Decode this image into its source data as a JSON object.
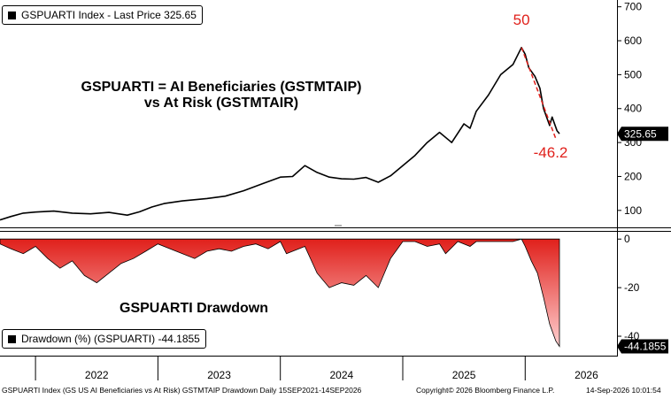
{
  "top_legend": "GSPUARTI Index - Last Price 325.65",
  "bottom_legend": "Drawdown (%) (GSPUARTI) -44.1855",
  "annotation_title_line1": "GSPUARTI = AI Beneficiaries (GSTMTAIP)",
  "annotation_title_line2": "vs At Risk (GSTMTAIR)",
  "annotation_drawdown": "GSPUARTI Drawdown",
  "annotation_peak": "50",
  "annotation_drop": "-46.2",
  "footer_left": "GSPUARTI Index (GS US AI Beneficiaries vs At Risk) GSTMTAIP Drawdown Daily 15SEP2021-14SEP2026",
  "footer_mid": "Copyright© 2026 Bloomberg Finance L.P.",
  "footer_right": "14-Sep-2026 10:01:54",
  "colors": {
    "line": "#000000",
    "accent": "#e0201b",
    "fill_dark": "#e0201b",
    "fill_light": "#ffd0d0"
  },
  "chart_data": [
    {
      "type": "line",
      "title": "GSPUARTI Index - Last Price 325.65",
      "last_value": 325.65,
      "last_value_label": "325.65",
      "ylim": [
        50,
        720
      ],
      "yticks": [
        100,
        200,
        300,
        400,
        500,
        600,
        700
      ],
      "ytick_labels": [
        "100",
        "200",
        "300",
        "400",
        "500",
        "600",
        "700"
      ],
      "xlim": [
        2021.71,
        2026.75
      ],
      "xtick_positions": [
        2022,
        2023,
        2024,
        2025,
        2026
      ],
      "xtick_labels": [
        "2022",
        "2023",
        "2024",
        "2025",
        "2026"
      ],
      "series": [
        {
          "x": [
            2021.71,
            2021.8,
            2021.9,
            2022.0,
            2022.15,
            2022.3,
            2022.45,
            2022.6,
            2022.75,
            2022.85,
            2022.95,
            2023.05,
            2023.2,
            2023.4,
            2023.55,
            2023.7,
            2023.85,
            2024.0,
            2024.1,
            2024.2,
            2024.3,
            2024.4,
            2024.5,
            2024.6,
            2024.7,
            2024.8,
            2024.9,
            2025.0,
            2025.1,
            2025.2,
            2025.3,
            2025.4,
            2025.5,
            2025.55,
            2025.6,
            2025.7,
            2025.8,
            2025.9,
            2025.97,
            2026.0,
            2026.03,
            2026.08,
            2026.12,
            2026.15,
            2026.2,
            2026.22,
            2026.26,
            2026.28
          ],
          "y": [
            72,
            82,
            92,
            95,
            98,
            92,
            90,
            94,
            86,
            96,
            110,
            120,
            128,
            135,
            142,
            158,
            178,
            198,
            200,
            232,
            212,
            198,
            193,
            192,
            197,
            183,
            202,
            232,
            262,
            300,
            330,
            300,
            355,
            342,
            392,
            440,
            500,
            530,
            580,
            560,
            520,
            495,
            460,
            400,
            350,
            375,
            335,
            326
          ]
        }
      ],
      "annotations": [
        {
          "text": "50",
          "x": 2026.0,
          "value": 50
        },
        {
          "text": "-46.2",
          "x": 2026.25,
          "value": -46.2
        }
      ]
    },
    {
      "type": "area",
      "title": "Drawdown (%) (GSPUARTI) -44.1855",
      "last_value": -44.1855,
      "last_value_label": "-44.1855",
      "ylim": [
        -48,
        3
      ],
      "yticks": [
        0,
        -20,
        -40
      ],
      "ytick_labels": [
        "0",
        "-20",
        "-40"
      ],
      "xlim": [
        2021.71,
        2026.75
      ],
      "series": [
        {
          "x": [
            2021.71,
            2021.8,
            2021.9,
            2022.0,
            2022.1,
            2022.2,
            2022.3,
            2022.4,
            2022.5,
            2022.6,
            2022.7,
            2022.8,
            2022.9,
            2023.0,
            2023.1,
            2023.2,
            2023.3,
            2023.4,
            2023.5,
            2023.6,
            2023.7,
            2023.8,
            2023.9,
            2024.0,
            2024.05,
            2024.1,
            2024.2,
            2024.3,
            2024.4,
            2024.5,
            2024.6,
            2024.7,
            2024.8,
            2024.9,
            2025.0,
            2025.1,
            2025.2,
            2025.3,
            2025.35,
            2025.45,
            2025.55,
            2025.6,
            2025.7,
            2025.8,
            2025.9,
            2025.97,
            2026.0,
            2026.05,
            2026.1,
            2026.15,
            2026.2,
            2026.25,
            2026.28
          ],
          "y": [
            -2,
            -4,
            -6,
            -3,
            -8,
            -12,
            -9,
            -15,
            -18,
            -14,
            -10,
            -8,
            -5,
            -2,
            -4,
            -6,
            -8,
            -5,
            -4,
            -5,
            -3,
            -2,
            -4,
            -1,
            -6,
            -5,
            -3,
            -14,
            -20,
            -18,
            -19,
            -15,
            -20,
            -8,
            -1,
            -1,
            -3,
            -2,
            -6,
            -1,
            -3,
            -1,
            -1,
            -1,
            -1,
            0,
            -3,
            -9,
            -14,
            -24,
            -35,
            -42,
            -44.2
          ]
        }
      ]
    }
  ]
}
